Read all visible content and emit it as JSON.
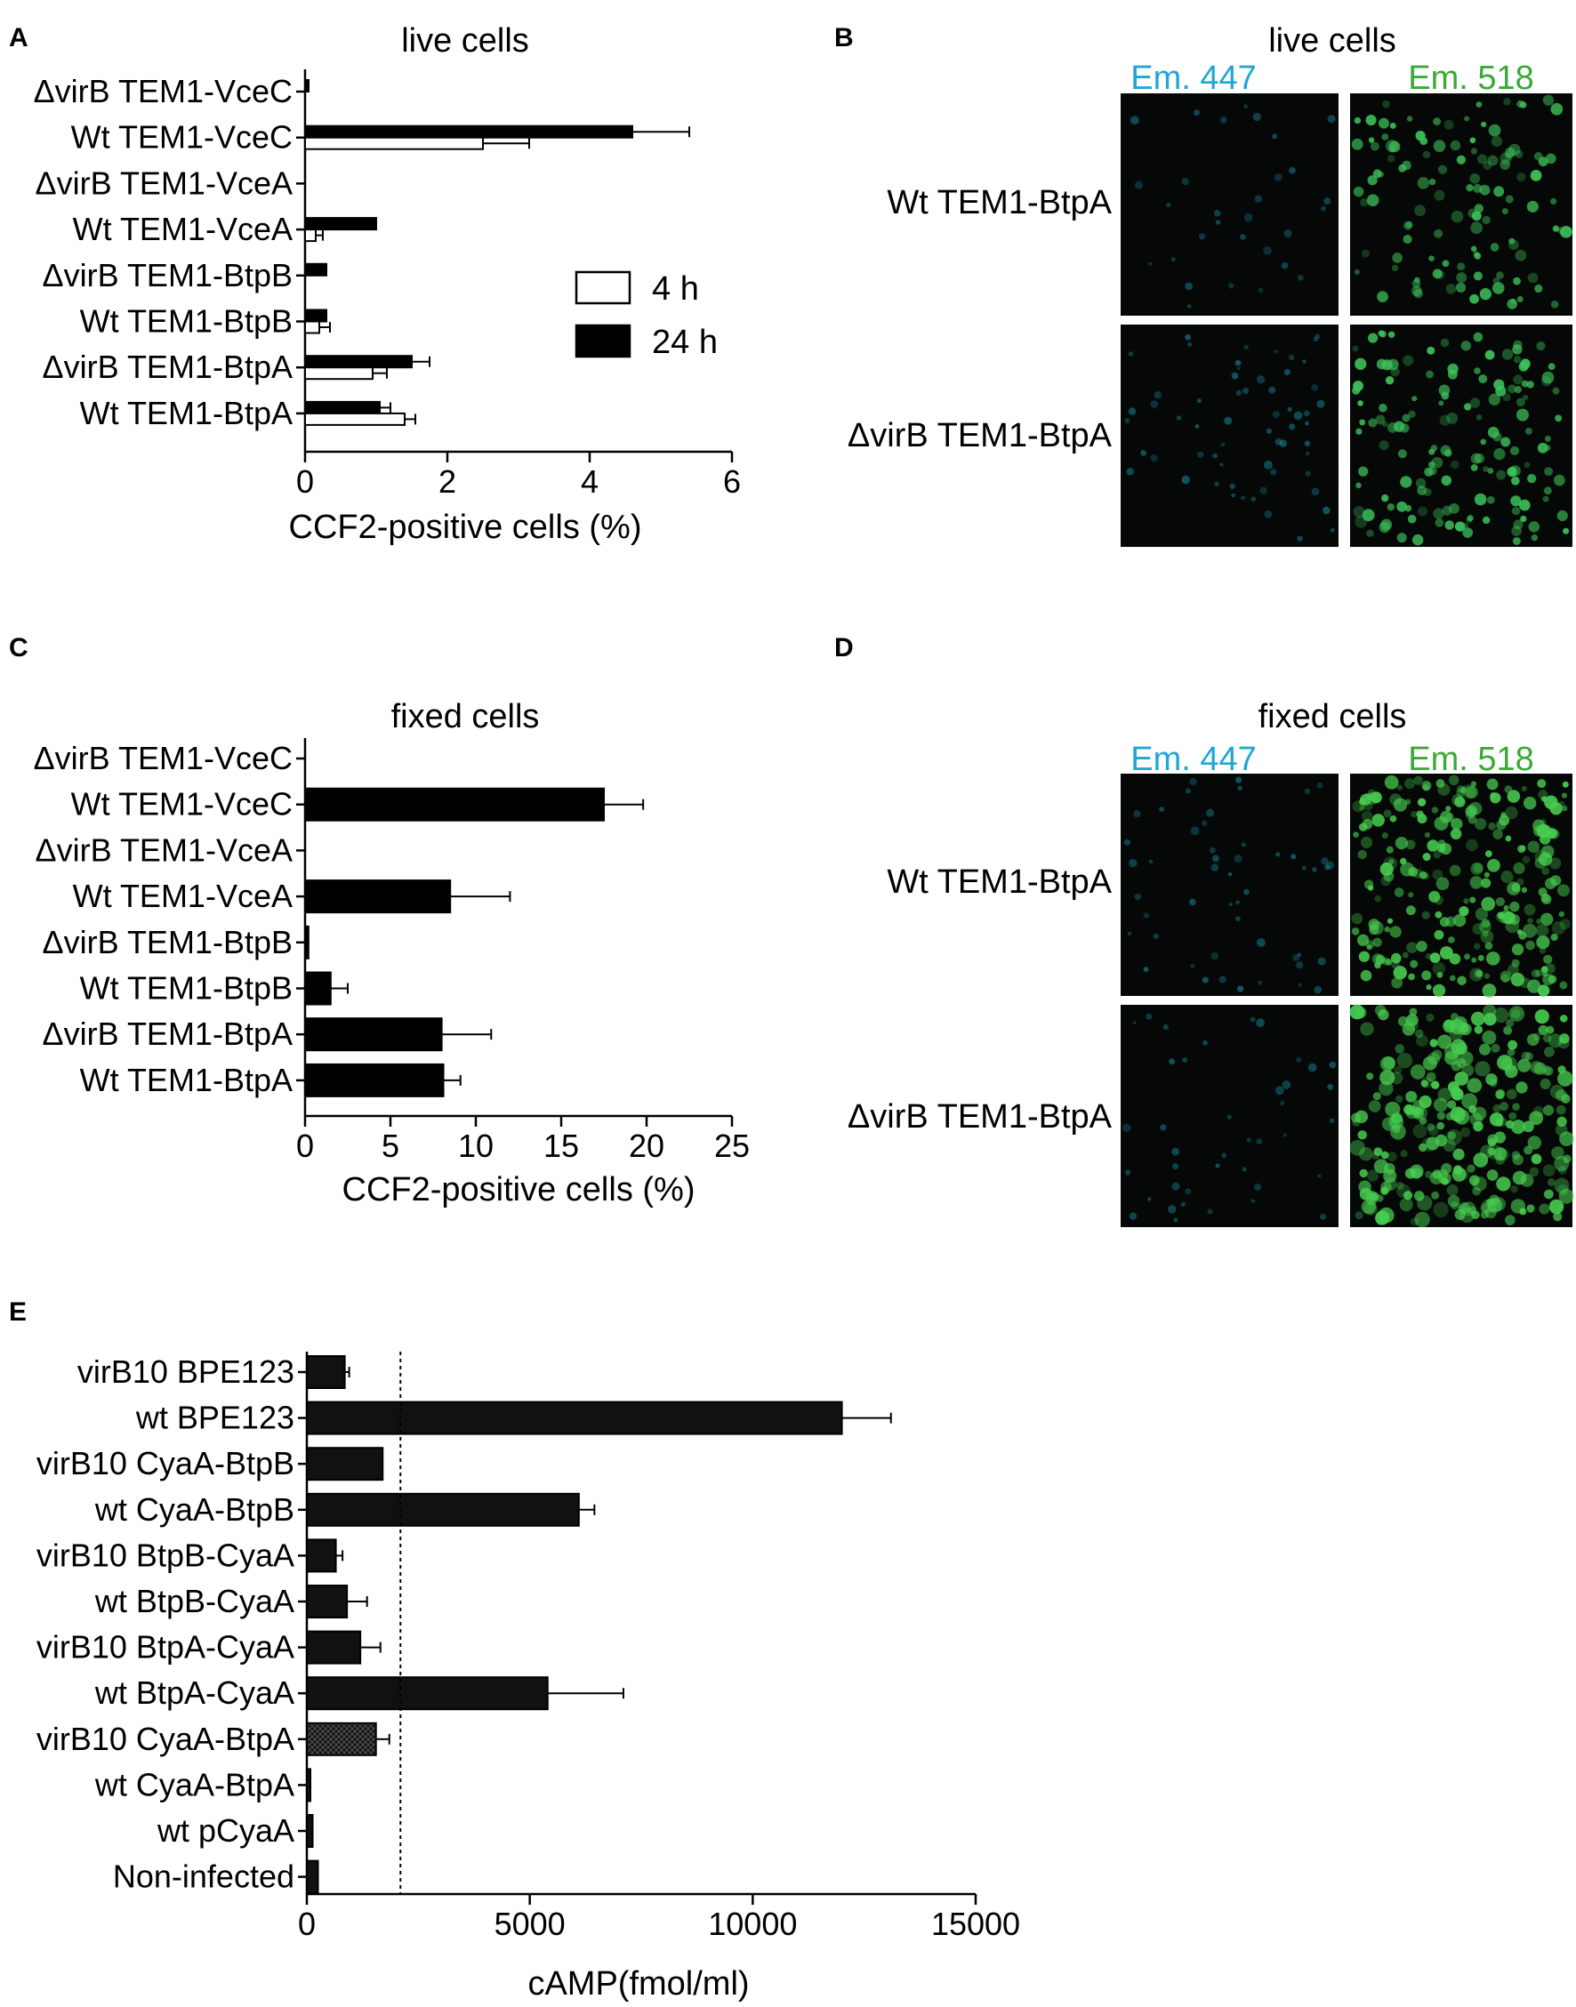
{
  "chart_data": [
    {
      "panel": "A",
      "type": "bar",
      "orientation": "horizontal",
      "title": "live cells",
      "xlabel": "CCF2-positive cells (%)",
      "ylabel": "",
      "xlim": [
        0,
        6
      ],
      "xticks": [
        0,
        2,
        4,
        6
      ],
      "categories": [
        "ΔvirB TEM1-VceC",
        "Wt TEM1-VceC",
        "ΔvirB TEM1-VceA",
        "Wt TEM1-VceA",
        "ΔvirB TEM1-BtpB",
        "Wt TEM1-BtpB",
        "ΔvirB TEM1-BtpA",
        "Wt TEM1-BtpA"
      ],
      "series": [
        {
          "name": "24 h",
          "color": "#000000",
          "values": [
            0.05,
            4.6,
            0,
            1.0,
            0.3,
            0.3,
            1.5,
            1.05
          ],
          "errors": [
            0,
            0.8,
            0,
            0,
            0,
            0,
            0.25,
            0.15
          ]
        },
        {
          "name": "4 h",
          "color": "#ffffff",
          "values": [
            0,
            2.5,
            0,
            0.15,
            0,
            0.2,
            0.95,
            1.4
          ],
          "errors": [
            0,
            0.65,
            0,
            0.1,
            0,
            0.15,
            0.2,
            0.15
          ]
        }
      ],
      "legend": {
        "position": "right",
        "items": [
          "4 h",
          "24 h"
        ]
      }
    },
    {
      "panel": "C",
      "type": "bar",
      "orientation": "horizontal",
      "title": "fixed cells",
      "xlabel": "CCF2-positive cells (%)",
      "ylabel": "",
      "xlim": [
        0,
        25
      ],
      "xticks": [
        0,
        5,
        10,
        15,
        20,
        25
      ],
      "categories": [
        "ΔvirB TEM1-VceC",
        "Wt TEM1-VceC",
        "ΔvirB TEM1-VceA",
        "Wt TEM1-VceA",
        "ΔvirB TEM1-BtpB",
        "Wt TEM1-BtpB",
        "ΔvirB TEM1-BtpA",
        "Wt TEM1-BtpA"
      ],
      "series": [
        {
          "name": "",
          "color": "#000000",
          "values": [
            0,
            17.5,
            0,
            8.5,
            0.2,
            1.5,
            8.0,
            8.1
          ],
          "errors": [
            0,
            2.3,
            0,
            3.5,
            0,
            1.0,
            2.9,
            1.0
          ]
        }
      ]
    },
    {
      "panel": "E",
      "type": "bar",
      "orientation": "horizontal",
      "title": "",
      "xlabel": "cAMP(fmol/ml)",
      "ylabel": "",
      "xlim": [
        0,
        15000
      ],
      "xticks": [
        0,
        5000,
        10000,
        15000
      ],
      "reference_line": 2100,
      "categories": [
        "virB10 BPE123",
        "wt BPE123",
        "virB10 CyaA-BtpB",
        "wt CyaA-BtpB",
        "virB10 BtpB-CyaA",
        "wt BtpB-CyaA",
        "virB10 BtpA-CyaA",
        "wt BtpA-CyaA",
        "virB10 CyaA-BtpA",
        "wt CyaA-BtpA",
        "wt pCyaA",
        "Non-infected"
      ],
      "series": [
        {
          "name": "",
          "color": "#111111",
          "values": [
            850,
            12000,
            1700,
            6100,
            650,
            900,
            1200,
            5400,
            1550,
            80,
            130,
            250
          ],
          "errors": [
            100,
            1100,
            0,
            350,
            150,
            450,
            450,
            1700,
            300,
            0,
            0,
            0
          ]
        }
      ]
    }
  ],
  "panels": {
    "A": {
      "letter": "A"
    },
    "B": {
      "letter": "B",
      "title": "live cells",
      "channels": [
        "Em. 447",
        "Em. 518"
      ],
      "rows": [
        "Wt TEM1-BtpA",
        "ΔvirB TEM1-BtpA"
      ],
      "channel_colors": [
        "#1ea6d6",
        "#3aaa35"
      ]
    },
    "C": {
      "letter": "C"
    },
    "D": {
      "letter": "D",
      "title": "fixed cells",
      "channels": [
        "Em. 447",
        "Em. 518"
      ],
      "rows": [
        "Wt TEM1-BtpA",
        "ΔvirB TEM1-BtpA"
      ],
      "channel_colors": [
        "#1ea6d6",
        "#3aaa35"
      ]
    },
    "E": {
      "letter": "E"
    }
  }
}
